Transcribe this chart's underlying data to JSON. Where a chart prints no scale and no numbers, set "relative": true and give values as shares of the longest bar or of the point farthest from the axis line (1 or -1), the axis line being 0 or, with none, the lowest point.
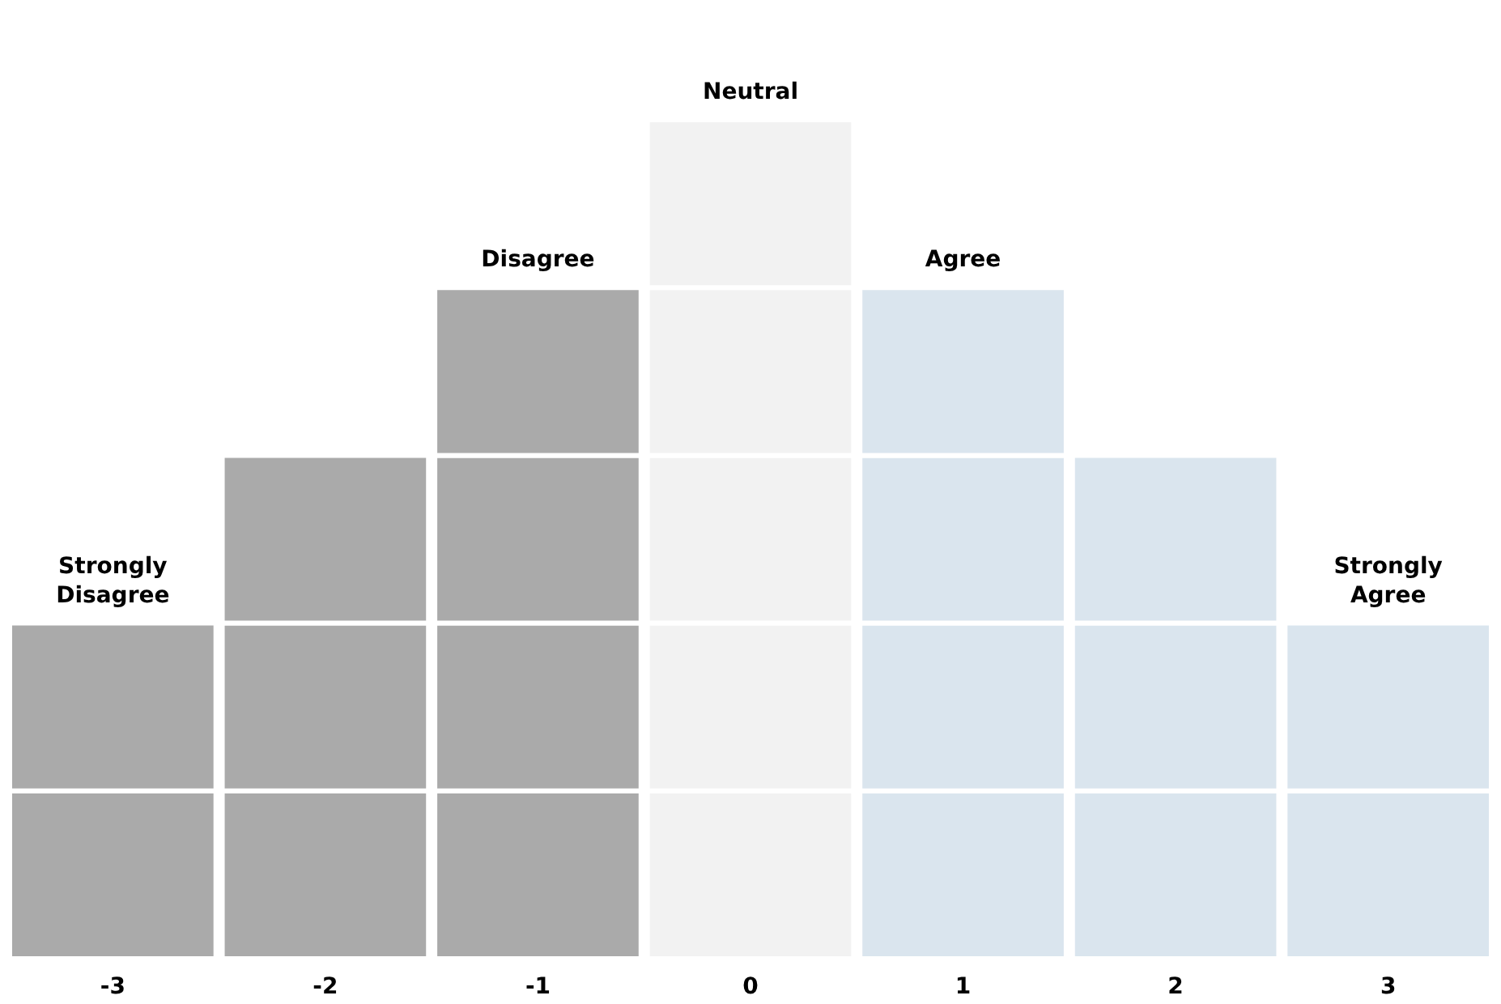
{
  "chart_data": {
    "type": "bar",
    "relative": true,
    "stacked": true,
    "categories": [
      "-3",
      "-2",
      "-1",
      "0",
      "1",
      "2",
      "3"
    ],
    "series": [
      {
        "colors": [
          "#aaaaaa",
          "#aaaaaa",
          "#aaaaaa",
          "#f2f2f2",
          "#dae5ee",
          "#dae5ee",
          "#dae5ee"
        ],
        "values": [
          0.2,
          0.2,
          0.2,
          0.2,
          0.2,
          0.2,
          0.2
        ]
      },
      {
        "colors": [
          "#aaaaaa",
          "#aaaaaa",
          "#aaaaaa",
          "#f2f2f2",
          "#dae5ee",
          "#dae5ee",
          "#dae5ee"
        ],
        "values": [
          0.2,
          0.2,
          0.2,
          0.2,
          0.2,
          0.2,
          0.2
        ]
      },
      {
        "colors": [
          "#aaaaaa",
          "#aaaaaa",
          "#aaaaaa",
          "#f2f2f2",
          "#dae5ee",
          "#dae5ee",
          "#dae5ee"
        ],
        "values": [
          null,
          0.2,
          0.2,
          0.2,
          0.2,
          0.2,
          null
        ]
      },
      {
        "colors": [
          "#aaaaaa",
          "#aaaaaa",
          "#aaaaaa",
          "#f2f2f2",
          "#dae5ee",
          "#dae5ee",
          "#dae5ee"
        ],
        "values": [
          null,
          null,
          0.2,
          0.2,
          0.2,
          null,
          null
        ]
      },
      {
        "colors": [
          "#aaaaaa",
          "#aaaaaa",
          "#aaaaaa",
          "#f2f2f2",
          "#dae5ee",
          "#dae5ee",
          "#dae5ee"
        ],
        "values": [
          null,
          null,
          null,
          0.2,
          null,
          null,
          null
        ]
      }
    ],
    "annotations": [
      {
        "text": "Neutral",
        "x": "0",
        "y": 1
      },
      {
        "text": "Disagree",
        "x": "-1",
        "y": 0.8
      },
      {
        "text": "Agree",
        "x": "1",
        "y": 0.8
      },
      {
        "text": "Strongly\nDisagree",
        "x": "-3",
        "y": 0.4
      },
      {
        "text": "Strongly\nAgree",
        "x": "3",
        "y": 0.4
      }
    ]
  }
}
